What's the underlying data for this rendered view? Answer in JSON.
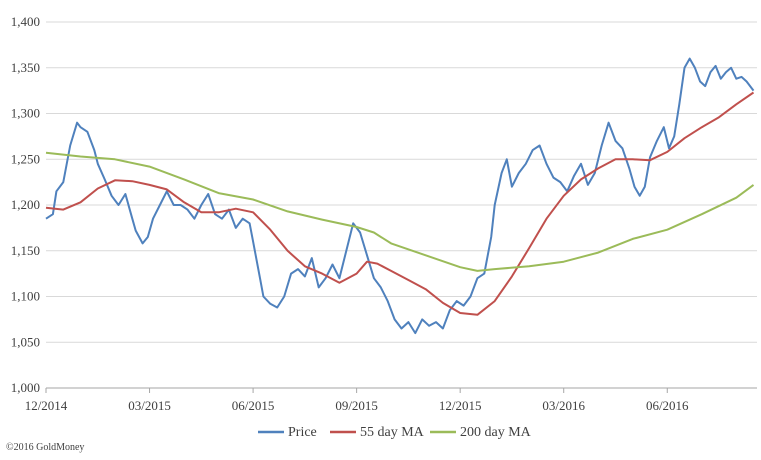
{
  "chart_data": {
    "type": "line",
    "title": "",
    "xlabel": "",
    "ylabel": "",
    "ylim": [
      1000,
      1400
    ],
    "y_ticks": [
      1000,
      1050,
      1100,
      1150,
      1200,
      1250,
      1300,
      1350,
      1400
    ],
    "y_tick_labels": [
      "1,000",
      "1,050",
      "1,100",
      "1,150",
      "1,200",
      "1,250",
      "1,300",
      "1,350",
      "1,400"
    ],
    "x_tick_labels": [
      "12/2014",
      "03/2015",
      "06/2015",
      "09/2015",
      "12/2015",
      "03/2016",
      "06/2016"
    ],
    "grid": "horizontal",
    "legend_position": "bottom",
    "copyright": "©2016 GoldMoney",
    "series": [
      {
        "name": "Price",
        "color": "#4f81bd",
        "points": [
          [
            0,
            1185
          ],
          [
            0.2,
            1190
          ],
          [
            0.3,
            1215
          ],
          [
            0.5,
            1225
          ],
          [
            0.7,
            1265
          ],
          [
            0.9,
            1290
          ],
          [
            1.0,
            1285
          ],
          [
            1.2,
            1280
          ],
          [
            1.4,
            1260
          ],
          [
            1.5,
            1245
          ],
          [
            1.7,
            1228
          ],
          [
            1.9,
            1210
          ],
          [
            2.1,
            1200
          ],
          [
            2.3,
            1212
          ],
          [
            2.5,
            1185
          ],
          [
            2.6,
            1172
          ],
          [
            2.8,
            1158
          ],
          [
            2.95,
            1165
          ],
          [
            3.1,
            1185
          ],
          [
            3.3,
            1200
          ],
          [
            3.5,
            1215
          ],
          [
            3.7,
            1200
          ],
          [
            3.9,
            1200
          ],
          [
            4.1,
            1195
          ],
          [
            4.3,
            1185
          ],
          [
            4.5,
            1200
          ],
          [
            4.7,
            1212
          ],
          [
            4.9,
            1190
          ],
          [
            5.1,
            1185
          ],
          [
            5.3,
            1195
          ],
          [
            5.5,
            1175
          ],
          [
            5.7,
            1185
          ],
          [
            5.9,
            1180
          ],
          [
            6.0,
            1160
          ],
          [
            6.2,
            1120
          ],
          [
            6.3,
            1100
          ],
          [
            6.5,
            1092
          ],
          [
            6.7,
            1088
          ],
          [
            6.9,
            1100
          ],
          [
            7.1,
            1125
          ],
          [
            7.3,
            1130
          ],
          [
            7.5,
            1122
          ],
          [
            7.7,
            1142
          ],
          [
            7.9,
            1110
          ],
          [
            8.1,
            1120
          ],
          [
            8.3,
            1135
          ],
          [
            8.5,
            1120
          ],
          [
            8.7,
            1150
          ],
          [
            8.9,
            1180
          ],
          [
            9.1,
            1170
          ],
          [
            9.3,
            1145
          ],
          [
            9.5,
            1120
          ],
          [
            9.7,
            1110
          ],
          [
            9.9,
            1095
          ],
          [
            10.1,
            1075
          ],
          [
            10.3,
            1065
          ],
          [
            10.5,
            1072
          ],
          [
            10.7,
            1060
          ],
          [
            10.9,
            1075
          ],
          [
            11.1,
            1068
          ],
          [
            11.3,
            1072
          ],
          [
            11.5,
            1065
          ],
          [
            11.7,
            1085
          ],
          [
            11.9,
            1095
          ],
          [
            12.1,
            1090
          ],
          [
            12.3,
            1100
          ],
          [
            12.5,
            1120
          ],
          [
            12.7,
            1125
          ],
          [
            12.9,
            1165
          ],
          [
            13.0,
            1200
          ],
          [
            13.2,
            1235
          ],
          [
            13.35,
            1250
          ],
          [
            13.5,
            1220
          ],
          [
            13.7,
            1235
          ],
          [
            13.9,
            1245
          ],
          [
            14.1,
            1260
          ],
          [
            14.3,
            1265
          ],
          [
            14.5,
            1245
          ],
          [
            14.7,
            1230
          ],
          [
            14.9,
            1225
          ],
          [
            15.1,
            1215
          ],
          [
            15.3,
            1232
          ],
          [
            15.5,
            1245
          ],
          [
            15.7,
            1222
          ],
          [
            15.9,
            1235
          ],
          [
            16.1,
            1265
          ],
          [
            16.3,
            1290
          ],
          [
            16.5,
            1270
          ],
          [
            16.7,
            1262
          ],
          [
            16.9,
            1240
          ],
          [
            17.05,
            1220
          ],
          [
            17.2,
            1210
          ],
          [
            17.35,
            1220
          ],
          [
            17.5,
            1252
          ],
          [
            17.7,
            1270
          ],
          [
            17.9,
            1285
          ],
          [
            18.05,
            1262
          ],
          [
            18.2,
            1275
          ],
          [
            18.35,
            1310
          ],
          [
            18.5,
            1350
          ],
          [
            18.65,
            1360
          ],
          [
            18.8,
            1350
          ],
          [
            18.95,
            1335
          ],
          [
            19.1,
            1330
          ],
          [
            19.25,
            1345
          ],
          [
            19.4,
            1352
          ],
          [
            19.55,
            1338
          ],
          [
            19.7,
            1345
          ],
          [
            19.85,
            1350
          ],
          [
            20.0,
            1338
          ],
          [
            20.15,
            1340
          ],
          [
            20.3,
            1335
          ],
          [
            20.5,
            1325
          ]
        ]
      },
      {
        "name": "55 day MA",
        "color": "#c0504d",
        "points": [
          [
            0,
            1197
          ],
          [
            0.5,
            1195
          ],
          [
            1.0,
            1203
          ],
          [
            1.5,
            1218
          ],
          [
            2.0,
            1227
          ],
          [
            2.5,
            1226
          ],
          [
            3.0,
            1222
          ],
          [
            3.5,
            1217
          ],
          [
            4.0,
            1203
          ],
          [
            4.5,
            1192
          ],
          [
            5.0,
            1192
          ],
          [
            5.5,
            1196
          ],
          [
            6.0,
            1192
          ],
          [
            6.5,
            1173
          ],
          [
            7.0,
            1150
          ],
          [
            7.5,
            1133
          ],
          [
            8.0,
            1125
          ],
          [
            8.5,
            1115
          ],
          [
            9.0,
            1125
          ],
          [
            9.3,
            1138
          ],
          [
            9.6,
            1136
          ],
          [
            10.0,
            1128
          ],
          [
            10.5,
            1118
          ],
          [
            11.0,
            1108
          ],
          [
            11.5,
            1093
          ],
          [
            12.0,
            1082
          ],
          [
            12.5,
            1080
          ],
          [
            13.0,
            1095
          ],
          [
            13.5,
            1122
          ],
          [
            14.0,
            1153
          ],
          [
            14.5,
            1185
          ],
          [
            15.0,
            1210
          ],
          [
            15.5,
            1228
          ],
          [
            16.0,
            1240
          ],
          [
            16.5,
            1250
          ],
          [
            17.0,
            1250
          ],
          [
            17.5,
            1249
          ],
          [
            18.0,
            1258
          ],
          [
            18.5,
            1273
          ],
          [
            19.0,
            1285
          ],
          [
            19.5,
            1296
          ],
          [
            20.0,
            1310
          ],
          [
            20.5,
            1323
          ]
        ]
      },
      {
        "name": "200 day MA",
        "color": "#9bbb59",
        "points": [
          [
            0,
            1257
          ],
          [
            1.0,
            1253
          ],
          [
            2.0,
            1250
          ],
          [
            3.0,
            1242
          ],
          [
            4.0,
            1228
          ],
          [
            5.0,
            1213
          ],
          [
            6.0,
            1206
          ],
          [
            7.0,
            1193
          ],
          [
            8.0,
            1184
          ],
          [
            9.0,
            1176
          ],
          [
            9.5,
            1170
          ],
          [
            10.0,
            1158
          ],
          [
            11.0,
            1145
          ],
          [
            12.0,
            1132
          ],
          [
            12.5,
            1128
          ],
          [
            13.0,
            1130
          ],
          [
            14.0,
            1133
          ],
          [
            15.0,
            1138
          ],
          [
            16.0,
            1148
          ],
          [
            17.0,
            1163
          ],
          [
            18.0,
            1173
          ],
          [
            19.0,
            1190
          ],
          [
            20.0,
            1208
          ],
          [
            20.5,
            1222
          ]
        ]
      }
    ]
  }
}
